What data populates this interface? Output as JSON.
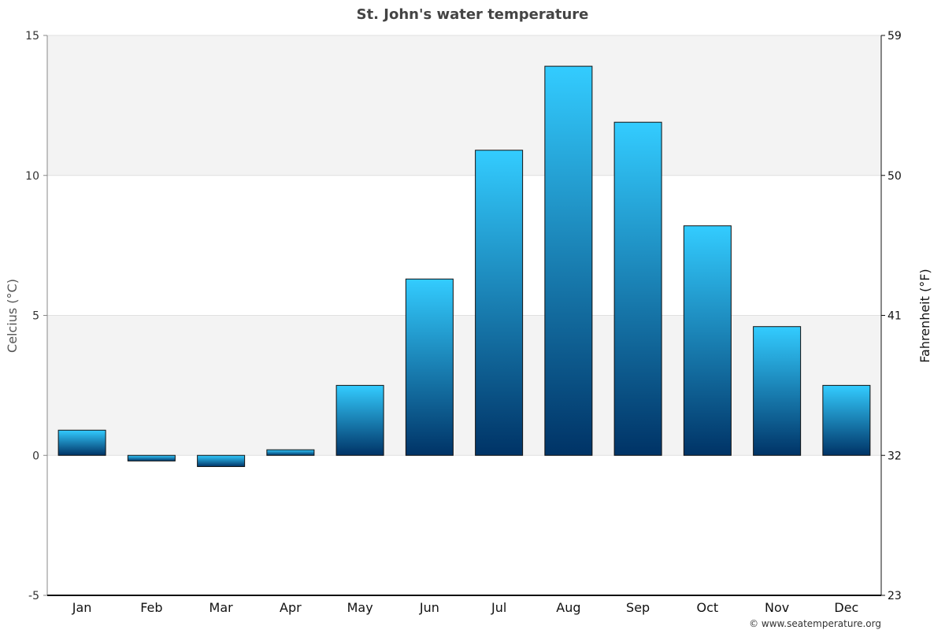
{
  "chart_data": {
    "type": "bar",
    "title": "St. John's water temperature",
    "categories": [
      "Jan",
      "Feb",
      "Mar",
      "Apr",
      "May",
      "Jun",
      "Jul",
      "Aug",
      "Sep",
      "Oct",
      "Nov",
      "Dec"
    ],
    "values": [
      0.9,
      -0.2,
      -0.4,
      0.2,
      2.5,
      6.3,
      10.9,
      13.9,
      11.9,
      8.2,
      4.6,
      2.5
    ],
    "ylabel": "Celcius (°C)",
    "y2label": "Fahrenheit (°F)",
    "ylim": [
      -5,
      15
    ],
    "yticks": [
      "15",
      "10",
      "5",
      "0",
      "-5"
    ],
    "y2ticks": [
      "59",
      "50",
      "41",
      "32",
      "23"
    ],
    "grid": true,
    "bands": "alternating light grey",
    "colors": {
      "bar_top": "#33ccff",
      "bar_bottom": "#003366",
      "band": "#f3f3f3"
    }
  },
  "credit": "© www.seatemperature.org"
}
